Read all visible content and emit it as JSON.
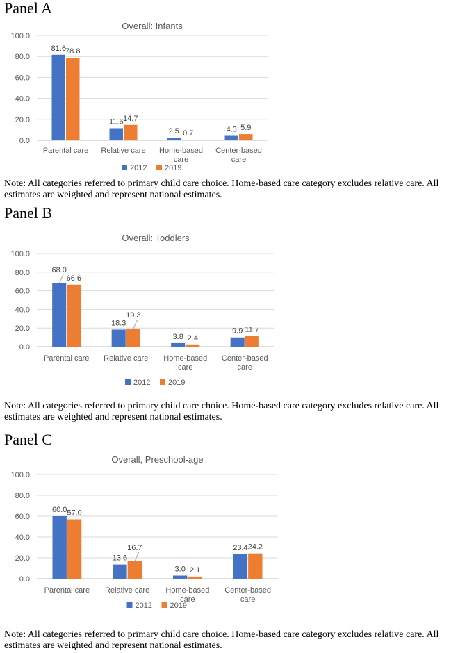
{
  "colors": {
    "series_2012": "#4472C4",
    "series_2019": "#ED7D31"
  },
  "panels": [
    {
      "heading": "Panel A",
      "note": "Note: All categories referred to primary child care choice. Home-based care category excludes relative care. All estimates are weighted and represent national estimates."
    },
    {
      "heading": "Panel B",
      "note": "Note: All categories referred to primary child care choice. Home-based care category excludes relative care. All estimates are weighted and represent national estimates."
    },
    {
      "heading": "Panel C",
      "note": "Note: All categories referred to primary child care choice. Home-based care category excludes relative care. All estimates are weighted and represent national estimates."
    }
  ],
  "chart_data": [
    {
      "type": "bar",
      "title": "Overall: Infants",
      "categories": [
        [
          "Parental care"
        ],
        [
          "Relative care"
        ],
        [
          "Home-based",
          "care"
        ],
        [
          "Center-based",
          "care"
        ]
      ],
      "series": [
        {
          "name": "2012",
          "values": [
            81.6,
            11.6,
            2.5,
            4.3
          ],
          "labels": [
            "81.6",
            "11.6",
            "2.5",
            "4.3"
          ]
        },
        {
          "name": "2019",
          "values": [
            78.8,
            14.7,
            0.7,
            5.9
          ],
          "labels": [
            "78.8",
            "14.7",
            "0.7",
            "5.9"
          ]
        }
      ],
      "ylim": [
        0,
        100
      ],
      "yticks": [
        "0.0",
        "20.0",
        "40.0",
        "60.0",
        "80.0",
        "100.0"
      ],
      "grid": true,
      "legend": "bottom"
    },
    {
      "type": "bar",
      "title": "Overall: Toddlers",
      "categories": [
        [
          "Parental care"
        ],
        [
          "Relative care"
        ],
        [
          "Home-based",
          "care"
        ],
        [
          "Center-based",
          "care"
        ]
      ],
      "series": [
        {
          "name": "2012",
          "values": [
            68.0,
            18.3,
            3.8,
            9.9
          ],
          "labels": [
            "68.0",
            "18.3",
            "3.8",
            "9.9"
          ]
        },
        {
          "name": "2019",
          "values": [
            66.6,
            19.3,
            2.4,
            11.7
          ],
          "labels": [
            "66.6",
            "19.3",
            "2.4",
            "11.7"
          ]
        }
      ],
      "ylim": [
        0,
        100
      ],
      "yticks": [
        "0.0",
        "20.0",
        "40.0",
        "60.0",
        "80.0",
        "100.0"
      ],
      "grid": true,
      "legend": "bottom"
    },
    {
      "type": "bar",
      "title": "Overall, Preschool-age",
      "categories": [
        [
          "Parental care"
        ],
        [
          "Relative care"
        ],
        [
          "Home-based",
          "care"
        ],
        [
          "Center-based",
          "care"
        ]
      ],
      "series": [
        {
          "name": "2012",
          "values": [
            60.0,
            13.6,
            3.0,
            23.4
          ],
          "labels": [
            "60.0",
            "13.6",
            "3.0",
            "23.4"
          ]
        },
        {
          "name": "2019",
          "values": [
            57.0,
            16.7,
            2.1,
            24.2
          ],
          "labels": [
            "57.0",
            "16.7",
            "2.1",
            "24.2"
          ]
        }
      ],
      "ylim": [
        0,
        100
      ],
      "yticks": [
        "0.0",
        "20.0",
        "40.0",
        "60.0",
        "80.0",
        "100.0"
      ],
      "grid": true,
      "legend": "bottom"
    }
  ]
}
